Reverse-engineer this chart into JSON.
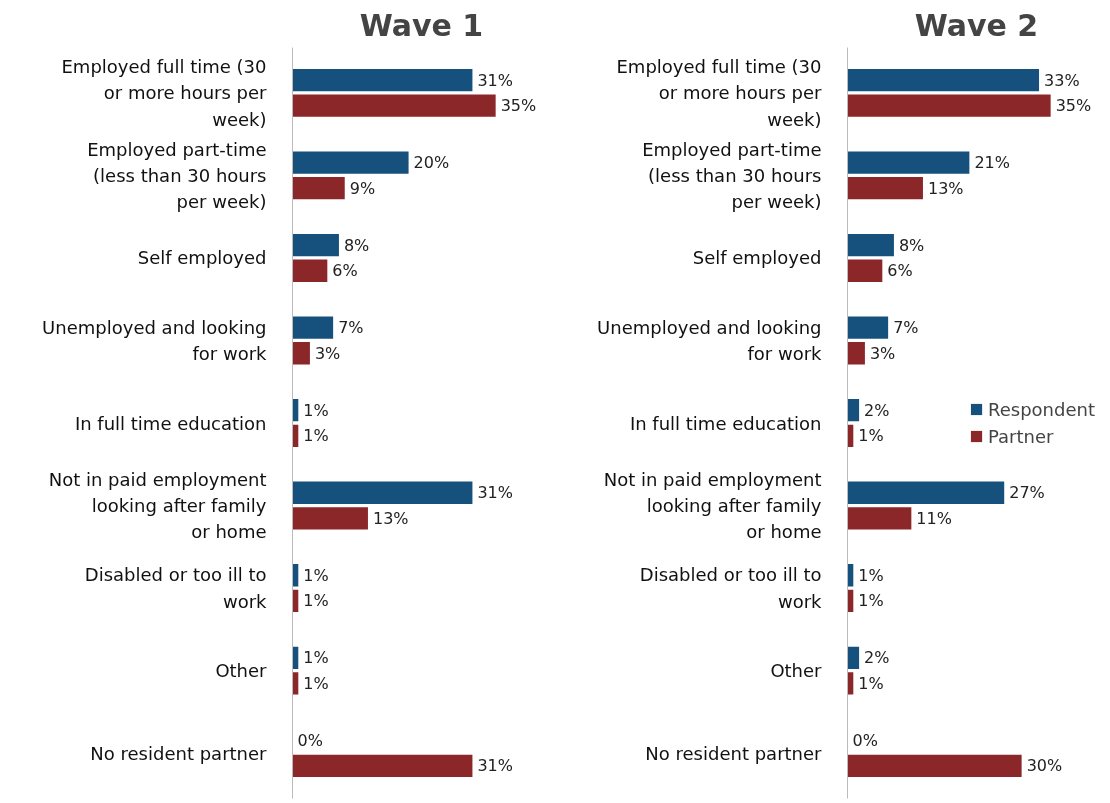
{
  "chart_data": [
    {
      "type": "bar",
      "orientation": "horizontal",
      "title": "Wave 1",
      "categories": [
        "Employed full time (30 or more hours per week)",
        "Employed part-time (less than 30 hours per week)",
        "Self employed",
        "Unemployed and looking for work",
        "In full time education",
        "Not in paid employment looking after family or home",
        "Disabled or too ill to work",
        "Other",
        "No resident partner"
      ],
      "series": [
        {
          "color": "#16507c",
          "values": [
            31,
            20,
            8,
            7,
            1,
            31,
            1,
            1,
            0
          ],
          "value_labels": [
            "31%",
            "20%",
            "8%",
            "7%",
            "1%",
            "31%",
            "1%",
            "1%",
            "0%"
          ]
        },
        {
          "color": "#8b2629",
          "values": [
            35,
            9,
            6,
            3,
            1,
            13,
            1,
            1,
            31
          ],
          "value_labels": [
            "35%",
            "9%",
            "6%",
            "3%",
            "1%",
            "13%",
            "1%",
            "1%",
            "31%"
          ]
        }
      ]
    },
    {
      "type": "bar",
      "orientation": "horizontal",
      "title": "Wave 2",
      "legend": "right",
      "categories": [
        "Employed full time (30 or more hours per week)",
        "Employed part-time (less than 30 hours per week)",
        "Self employed",
        "Unemployed and looking for work",
        "In full time education",
        "Not in paid employment looking after family or home",
        "Disabled or too ill to work",
        "Other",
        "No resident partner"
      ],
      "series": [
        {
          "name": "Respondent",
          "color": "#16507c",
          "values": [
            33,
            21,
            8,
            7,
            2,
            27,
            1,
            2,
            0
          ],
          "value_labels": [
            "33%",
            "21%",
            "8%",
            "7%",
            "2%",
            "27%",
            "1%",
            "2%",
            "0%"
          ]
        },
        {
          "name": "Partner",
          "color": "#8b2629",
          "values": [
            35,
            13,
            6,
            3,
            1,
            11,
            1,
            1,
            30
          ],
          "value_labels": [
            "35%",
            "13%",
            "6%",
            "3%",
            "1%",
            "11%",
            "1%",
            "1%",
            "30%"
          ]
        }
      ]
    }
  ]
}
